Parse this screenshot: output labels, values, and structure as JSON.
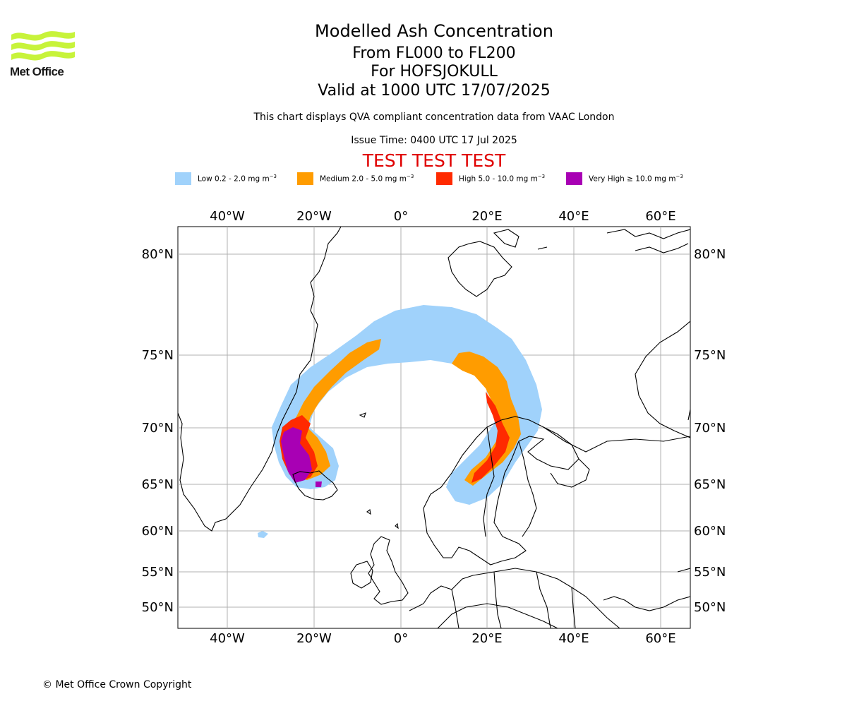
{
  "logo": {
    "text": "Met Office"
  },
  "header": {
    "title": "Modelled Ash Concentration",
    "levels": "From FL000 to FL200",
    "volcano": "For HOFSJOKULL",
    "valid": "Valid at 1000 UTC 17/07/2025",
    "description": "This chart displays QVA compliant concentration data from VAAC London",
    "issue_time": "Issue Time: 0400 UTC 17 Jul 2025",
    "test_banner": "TEST TEST TEST"
  },
  "legend": [
    {
      "label": "Low 0.2 - 2.0 mg m",
      "exp": "−3",
      "color": "#a0d2fb"
    },
    {
      "label": "Medium 2.0 - 5.0 mg m",
      "exp": "−3",
      "color": "#ff9c00"
    },
    {
      "label": "High 5.0 - 10.0 mg m",
      "exp": "−3",
      "color": "#ff2a00"
    },
    {
      "label": "Very High ≥ 10.0 mg m",
      "exp": "−3",
      "color": "#a800b4"
    }
  ],
  "map": {
    "lon_labels": [
      "40°W",
      "20°W",
      "0°",
      "20°E",
      "40°E",
      "60°E"
    ],
    "lat_labels": [
      "80°N",
      "75°N",
      "70°N",
      "65°N",
      "60°N",
      "55°N",
      "50°N"
    ],
    "grid": true,
    "land_outline_color": "#000000"
  },
  "footer": {
    "copyright": "© Met Office Crown Copyright"
  }
}
